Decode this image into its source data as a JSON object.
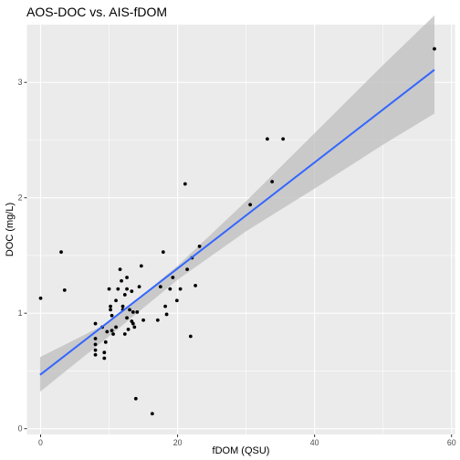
{
  "chart_data": {
    "type": "scatter",
    "title": "AOS-DOC vs. AIS-fDOM",
    "xlabel": "fDOM (QSU)",
    "ylabel": "DOC (mg/L)",
    "xlim": [
      -2,
      60.5
    ],
    "ylim": [
      -0.05,
      3.5
    ],
    "x_ticks": [
      0,
      20,
      40,
      60
    ],
    "y_ticks": [
      0,
      1,
      2,
      3
    ],
    "grid": true,
    "background_color": "#EBEBEB",
    "gridline_color": "#FFFFFF",
    "point_color": "#000000",
    "fit_line_color": "#3366FF",
    "band_color": "#BEBEBE",
    "points": [
      [
        0,
        1.13
      ],
      [
        3,
        1.53
      ],
      [
        3.5,
        1.2
      ],
      [
        8,
        0.91
      ],
      [
        8,
        0.78
      ],
      [
        8,
        0.73
      ],
      [
        8,
        0.68
      ],
      [
        8,
        0.64
      ],
      [
        9,
        0.88
      ],
      [
        9.3,
        0.66
      ],
      [
        9.3,
        0.61
      ],
      [
        9.5,
        0.75
      ],
      [
        9.7,
        0.84
      ],
      [
        10,
        1.21
      ],
      [
        10.2,
        1.06
      ],
      [
        10.2,
        1.03
      ],
      [
        10.4,
        0.98
      ],
      [
        10.4,
        0.85
      ],
      [
        10.6,
        0.82
      ],
      [
        11,
        1.11
      ],
      [
        11,
        0.88
      ],
      [
        11.3,
        1.21
      ],
      [
        11.6,
        1.38
      ],
      [
        11.8,
        1.28
      ],
      [
        12,
        1.06
      ],
      [
        12,
        1.03
      ],
      [
        12.3,
        1.16
      ],
      [
        12.3,
        0.82
      ],
      [
        12.6,
        1.31
      ],
      [
        12.6,
        1.21
      ],
      [
        12.6,
        0.96
      ],
      [
        12.8,
        0.86
      ],
      [
        13,
        1.03
      ],
      [
        13.3,
        1.19
      ],
      [
        13.3,
        0.93
      ],
      [
        13.5,
        0.91
      ],
      [
        13.5,
        1.01
      ],
      [
        13.7,
        0.88
      ],
      [
        13.9,
        0.26
      ],
      [
        14.1,
        1.01
      ],
      [
        14.4,
        1.23
      ],
      [
        14.7,
        1.41
      ],
      [
        15,
        0.94
      ],
      [
        16.3,
        0.13
      ],
      [
        17.1,
        0.94
      ],
      [
        17.5,
        1.23
      ],
      [
        17.9,
        1.53
      ],
      [
        18.2,
        1.06
      ],
      [
        18.4,
        0.99
      ],
      [
        18.9,
        1.21
      ],
      [
        19.3,
        1.31
      ],
      [
        19.9,
        1.11
      ],
      [
        20.4,
        1.21
      ],
      [
        21.1,
        2.12
      ],
      [
        21.4,
        1.38
      ],
      [
        21.9,
        0.8
      ],
      [
        22.1,
        1.48
      ],
      [
        22.6,
        1.24
      ],
      [
        23.2,
        1.58
      ],
      [
        30.6,
        1.94
      ],
      [
        33.1,
        2.51
      ],
      [
        33.8,
        2.14
      ],
      [
        35.4,
        2.51
      ],
      [
        57.5,
        3.29
      ]
    ],
    "fit": {
      "intercept": 0.47,
      "slope": 0.0459,
      "x_range": [
        -0.08,
        57.5
      ],
      "band": [
        [
          -0.08,
          0.32,
          0.62
        ],
        [
          10,
          0.8,
          0.92
        ],
        [
          20,
          1.29,
          1.41
        ],
        [
          30,
          1.71,
          1.97
        ],
        [
          40,
          2.08,
          2.56
        ],
        [
          50,
          2.46,
          3.15
        ],
        [
          57.5,
          2.73,
          3.58
        ]
      ]
    }
  }
}
